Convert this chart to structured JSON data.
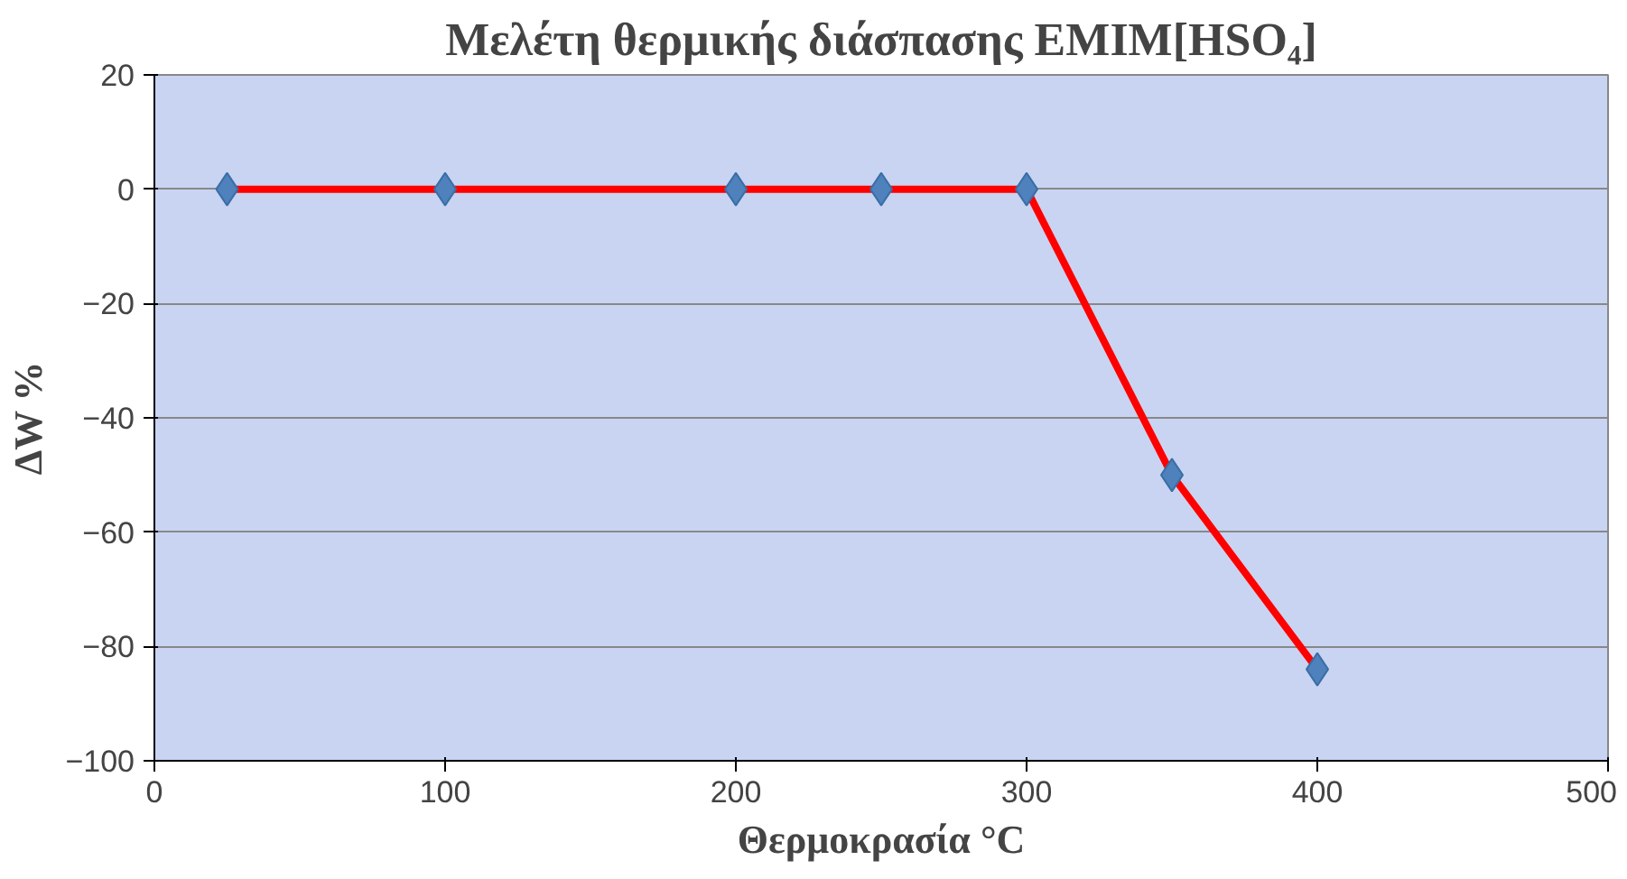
{
  "chart_data": {
    "type": "line",
    "title": "Μελέτη θερμικής διάσπασης EMIM[HSO₄]",
    "xlabel": "Θερμοκρασία °C",
    "ylabel": "ΔW %",
    "x": [
      25,
      100,
      200,
      250,
      300,
      350,
      400
    ],
    "series": [
      {
        "color": "#ff0000",
        "values": [
          0,
          0,
          0,
          0,
          0,
          -50,
          -84
        ]
      },
      {
        "type": "scatter",
        "color": "#4f81bd",
        "marker": "diamond",
        "values": [
          0,
          0,
          0,
          0,
          0,
          -50,
          -84
        ]
      }
    ],
    "line_style": "solid",
    "xlim": [
      0,
      500
    ],
    "xticks": [
      0,
      100,
      200,
      300,
      400,
      500
    ],
    "ylim": [
      -100,
      20
    ],
    "yticks": [
      20,
      0,
      -20,
      -40,
      -60,
      -80,
      -100
    ],
    "grid": "y"
  }
}
